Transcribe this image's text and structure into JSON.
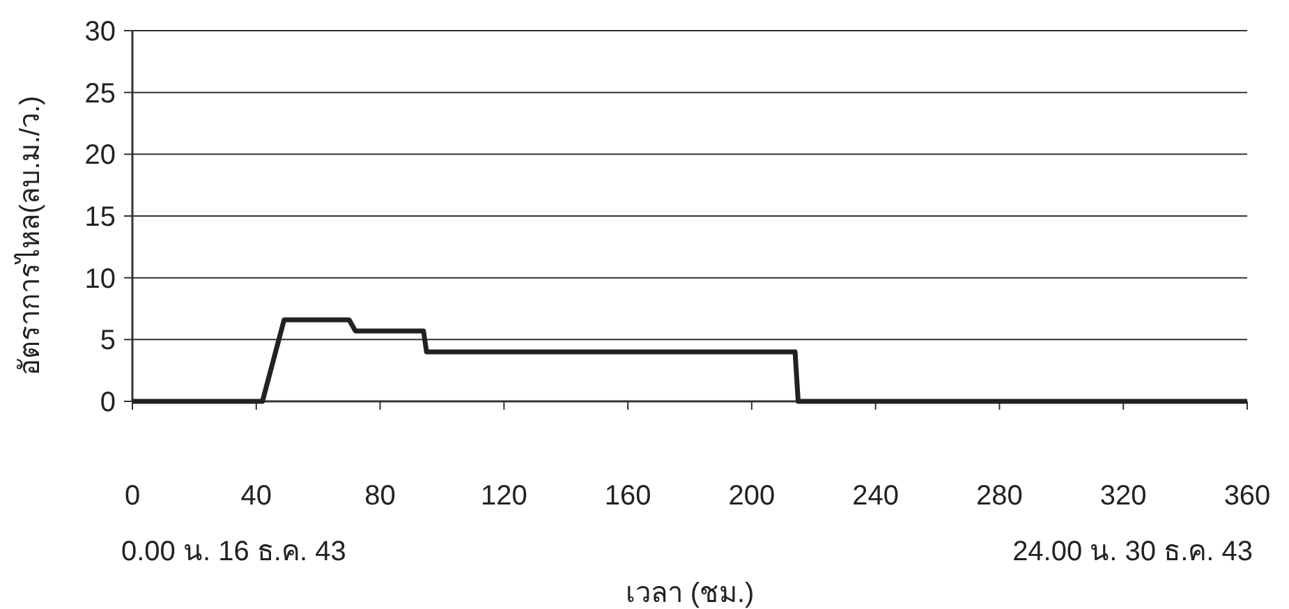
{
  "chart_data": {
    "type": "line",
    "xlabel": "เวลา (ชม.)",
    "ylabel": "อัตราการไหล(ลบ.ม./ว.)",
    "annotations": [
      "0.00 น. 16 ธ.ค. 43",
      "24.00 น. 30 ธ.ค. 43"
    ],
    "x": [
      0,
      42,
      49,
      70,
      72,
      94,
      95,
      214,
      215,
      360
    ],
    "series": [
      {
        "color": "#222222",
        "values": [
          0,
          0,
          6.6,
          6.6,
          5.7,
          5.7,
          4.0,
          4.0,
          0,
          0
        ]
      }
    ],
    "xlim": [
      0,
      360
    ],
    "xticks": [
      0,
      40,
      80,
      120,
      160,
      200,
      240,
      280,
      320,
      360
    ],
    "ylim": [
      0,
      30
    ],
    "yticks": [
      0,
      5,
      10,
      15,
      20,
      25,
      30
    ],
    "grid": "y"
  }
}
